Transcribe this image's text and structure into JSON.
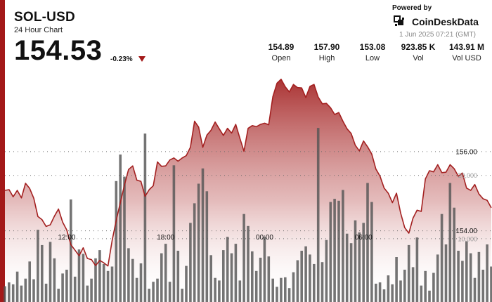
{
  "header": {
    "pair": "SOL-USD",
    "subtitle": "24 Hour Chart",
    "price": "154.53",
    "change": "-0.23%"
  },
  "branding": {
    "powered_by": "Powered by",
    "name": "CoinDeskData",
    "timestamp": "1 Jun 2025 07:21 (GMT)"
  },
  "stats": [
    {
      "value": "154.89",
      "label": "Open"
    },
    {
      "value": "157.90",
      "label": "High"
    },
    {
      "value": "153.08",
      "label": "Low"
    },
    {
      "value": "923.85 K",
      "label": "Vol"
    },
    {
      "value": "143.91 M",
      "label": "Vol USD"
    }
  ],
  "colors": {
    "accent": "#a31919",
    "line": "#a32020",
    "volume": "#555555"
  },
  "chart_data": {
    "type": "area",
    "title": "24 Hour Chart",
    "x_ticks": [
      "12:00",
      "18:00",
      "00:00",
      "06:00"
    ],
    "x_tick_index": [
      15,
      39,
      63,
      87
    ],
    "price_axis": {
      "ticks": [
        "156.00",
        "154.00"
      ],
      "tick_values": [
        156,
        154
      ],
      "range": [
        152.2,
        158.2
      ],
      "side": "right"
    },
    "volume_axis": {
      "ticks": [
        "20,000",
        "10,000"
      ],
      "tick_values": [
        20000,
        10000
      ],
      "range": [
        0,
        37500
      ],
      "side": "right"
    },
    "series": [
      {
        "kind": "price",
        "values": [
          155.02,
          155.04,
          154.86,
          155.02,
          154.83,
          155.2,
          155.07,
          154.82,
          154.36,
          154.28,
          154.11,
          154.15,
          154.37,
          154.55,
          154.22,
          154.02,
          153.65,
          153.51,
          153.37,
          153.57,
          153.3,
          153.27,
          153.12,
          153.25,
          153.19,
          153.11,
          153.75,
          154.26,
          154.71,
          155.16,
          155.55,
          155.64,
          155.28,
          155.25,
          154.87,
          155.04,
          155.14,
          155.74,
          155.63,
          155.64,
          155.79,
          155.84,
          155.76,
          155.84,
          155.9,
          156.11,
          156.77,
          156.62,
          156.11,
          156.42,
          156.54,
          156.75,
          156.58,
          156.41,
          156.59,
          156.47,
          156.69,
          156.34,
          156.01,
          156.59,
          156.66,
          156.63,
          156.69,
          156.72,
          156.68,
          157.39,
          157.73,
          157.83,
          157.64,
          157.51,
          157.7,
          157.62,
          157.61,
          157.37,
          157.65,
          157.7,
          157.38,
          157.21,
          157.22,
          157.11,
          156.94,
          156.99,
          156.77,
          156.58,
          156.46,
          156.16,
          156.02,
          156.27,
          156.12,
          155.94,
          155.56,
          155.38,
          155.08,
          154.95,
          154.71,
          154.95,
          154.45,
          154.08,
          153.94,
          154.32,
          154.52,
          154.49,
          155.31,
          155.52,
          155.49,
          155.67,
          155.47,
          155.48,
          155.67,
          155.57,
          155.38,
          155.46,
          155.08,
          155.02,
          155.17,
          154.93,
          154.81,
          154.77,
          154.58
        ]
      },
      {
        "kind": "volume",
        "values": [
          2500,
          3100,
          2800,
          4800,
          2600,
          3700,
          6400,
          3600,
          11400,
          9000,
          2900,
          9500,
          6900,
          2100,
          4500,
          5100,
          16200,
          4000,
          8300,
          7600,
          2600,
          3700,
          6900,
          8200,
          6000,
          4900,
          5600,
          19100,
          23300,
          19800,
          8500,
          6800,
          3800,
          6100,
          26600,
          2100,
          3200,
          3700,
          7700,
          9200,
          3200,
          21600,
          8100,
          2100,
          5700,
          12500,
          15600,
          18700,
          21100,
          17500,
          7400,
          3800,
          3400,
          8200,
          10300,
          7700,
          9200,
          3400,
          13900,
          12000,
          8000,
          4900,
          7000,
          10300,
          7200,
          3700,
          2400,
          3800,
          3900,
          2200,
          4700,
          6600,
          8100,
          8800,
          7500,
          6000,
          27500,
          6300,
          9800,
          15800,
          16300,
          16000,
          17700,
          10800,
          9300,
          12900,
          11000,
          12500,
          18800,
          15800,
          2900,
          3100,
          2000,
          4200,
          2800,
          7100,
          3400,
          5100,
          9000,
          5500,
          10200,
          2600,
          4900,
          1800,
          4600,
          7500,
          13900,
          9100,
          18800,
          14900,
          8100,
          6500,
          9600,
          7700,
          3800,
          7900,
          5100,
          9100,
          5600
        ]
      }
    ]
  }
}
